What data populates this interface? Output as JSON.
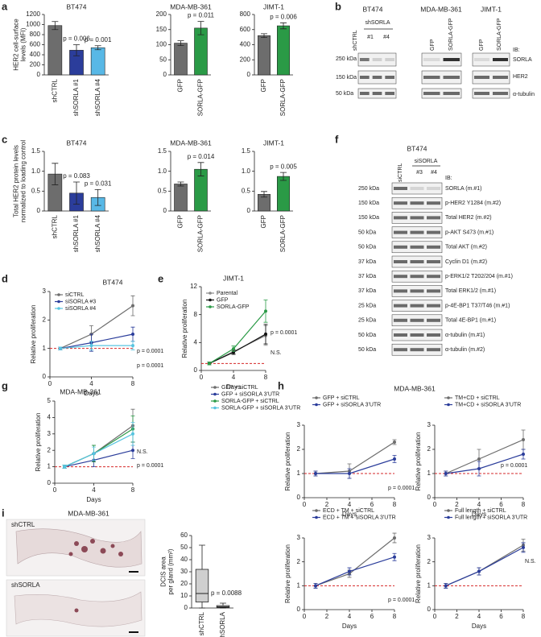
{
  "panels": [
    "a",
    "b",
    "c",
    "d",
    "e",
    "f",
    "g",
    "h",
    "i"
  ],
  "h_title": "MDA-MB-361",
  "i_title": "MDA-MB-361",
  "i_image_labels": [
    "shCTRL",
    "shSORLA"
  ],
  "blot_b": {
    "cell_lines": [
      "BT474",
      "MDA-MB-361",
      "JIMT-1"
    ],
    "lanes": [
      "shCTRL",
      "shSORLA",
      "#1",
      "#4",
      "GFP",
      "SORLA-GFP",
      "GFP",
      "SORLA-GFP"
    ],
    "markers": [
      "250 kDa",
      "150 kDa",
      "50 kDa"
    ],
    "ib": "IB:",
    "antibodies": [
      "SORLA",
      "HER2",
      "α-tubulin"
    ]
  },
  "blot_f": {
    "cell_line": "BT474",
    "lanes": [
      "siCTRL",
      "siSORLA",
      "#3",
      "#4"
    ],
    "ib": "IB:",
    "rows": [
      {
        "marker": "250 kDa",
        "antibody": "SORLA (m.#1)"
      },
      {
        "marker": "150 kDa",
        "antibody": "p-HER2 Y1284 (m.#2)"
      },
      {
        "marker": "150 kDa",
        "antibody": "Total HER2 (m.#2)"
      },
      {
        "marker": "50 kDa",
        "antibody": "p-AKT S473 (m.#1)"
      },
      {
        "marker": "50 kDa",
        "antibody": "Total AKT (m.#2)"
      },
      {
        "marker": "37 kDa",
        "antibody": "Cyclin D1 (m.#2)"
      },
      {
        "marker": "37 kDa",
        "antibody": "p-ERK1/2 T202/204 (m.#1)"
      },
      {
        "marker": "37 kDa",
        "antibody": "Total ERK1/2 (m.#1)"
      },
      {
        "marker": "25 kDa",
        "antibody": "p-4E-BP1 T37/T46 (m.#1)"
      },
      {
        "marker": "25 kDa",
        "antibody": "Total 4E-BP1 (m.#1)"
      },
      {
        "marker": "50 kDa",
        "antibody": "α-tubulin (m.#1)"
      },
      {
        "marker": "50 kDa",
        "antibody": "α-tubulin (m.#2)"
      }
    ]
  },
  "chart_data": [
    {
      "type": "bar",
      "title": "BT474",
      "ylabel": [
        "HER2 cell-surface",
        "levels (MFI)"
      ],
      "categories": [
        "shCTRL",
        "shSORLA #1",
        "shSORLA #4"
      ],
      "values": [
        980,
        490,
        540
      ],
      "errors": [
        80,
        110,
        40
      ],
      "colors": [
        "#6d6d6d",
        "#2b3d9b",
        "#58b8e6"
      ],
      "ylim": [
        0,
        1200
      ],
      "yticks": [
        0,
        200,
        400,
        600,
        800,
        1000,
        1200
      ],
      "annotations": [
        "p = 0.006",
        "p = 0.001"
      ]
    },
    {
      "type": "bar",
      "title": "MDA-MB-361",
      "categories": [
        "GFP",
        "SORLA-GFP"
      ],
      "values": [
        105,
        155
      ],
      "errors": [
        8,
        22
      ],
      "colors": [
        "#6d6d6d",
        "#2a9a46"
      ],
      "ylim": [
        0,
        200
      ],
      "yticks": [
        0,
        50,
        100,
        150,
        200
      ],
      "annotations": [
        "p = 0.011"
      ]
    },
    {
      "type": "bar",
      "title": "JIMT-1",
      "categories": [
        "GFP",
        "SORLA-GFP"
      ],
      "values": [
        520,
        650
      ],
      "errors": [
        25,
        40
      ],
      "colors": [
        "#6d6d6d",
        "#2a9a46"
      ],
      "ylim": [
        0,
        800
      ],
      "yticks": [
        0,
        200,
        400,
        600,
        800
      ],
      "annotations": [
        "p = 0.006"
      ]
    },
    {
      "type": "bar",
      "title": "BT474",
      "ylabel": [
        "Total HER2 protein levels",
        "normalized to loading control"
      ],
      "categories": [
        "shCTRL",
        "shSORLA #1",
        "shSORLA #4"
      ],
      "values": [
        0.93,
        0.45,
        0.34
      ],
      "errors": [
        0.27,
        0.28,
        0.2
      ],
      "colors": [
        "#6d6d6d",
        "#2b3d9b",
        "#58b8e6"
      ],
      "ylim": [
        0,
        1.5
      ],
      "yticks": [
        0,
        0.5,
        {
          "value": 1,
          "label": "1.0"
        },
        1.5
      ],
      "annotations": [
        "p = 0.083",
        "p = 0.031"
      ]
    },
    {
      "type": "bar",
      "title": "MDA-MB-361",
      "categories": [
        "GFP",
        "SORLA-GFP"
      ],
      "values": [
        0.68,
        1.05
      ],
      "errors": [
        0.05,
        0.17
      ],
      "colors": [
        "#6d6d6d",
        "#2a9a46"
      ],
      "ylim": [
        0,
        1.5
      ],
      "yticks": [
        0,
        0.5,
        {
          "value": 1,
          "label": "1.0"
        },
        1.5
      ],
      "annotations": [
        "p = 0.014"
      ]
    },
    {
      "type": "bar",
      "title": "JIMT-1",
      "categories": [
        "GFP",
        "SORLA-GFP"
      ],
      "values": [
        0.42,
        0.87
      ],
      "errors": [
        0.07,
        0.1
      ],
      "colors": [
        "#6d6d6d",
        "#2a9a46"
      ],
      "ylim": [
        0,
        1.5
      ],
      "yticks": [
        0,
        0.5,
        {
          "value": 1,
          "label": "1.0"
        },
        1.5
      ],
      "annotations": [
        "p = 0.005"
      ]
    },
    {
      "type": "line",
      "title": "BT474",
      "ylabel": "Relative proliferation",
      "xlabel": "Days",
      "x": [
        1,
        4,
        8
      ],
      "xlim": [
        0,
        8
      ],
      "xticks": [
        0,
        4,
        8
      ],
      "ylim": [
        0,
        3
      ],
      "yticks": [
        0,
        1,
        2,
        3
      ],
      "reference_line": 1,
      "reference_color": "#d62728",
      "series": [
        {
          "name": "siCTRL",
          "color": "#6d6d6d",
          "values": [
            1,
            1.5,
            2.5
          ],
          "errors": [
            0.05,
            0.3,
            0.35
          ]
        },
        {
          "name": "siSORLA #3",
          "color": "#2b3d9b",
          "values": [
            1,
            1.2,
            1.5
          ],
          "errors": [
            0.05,
            0.3,
            0.25
          ]
        },
        {
          "name": "siSORLA #4",
          "color": "#58c4e0",
          "values": [
            1,
            1.1,
            1.1
          ],
          "errors": [
            0.05,
            0.15,
            0.15
          ]
        }
      ],
      "annotations": [
        "p = 0.0001",
        "p = 0.0001"
      ]
    },
    {
      "type": "line",
      "title": "JIMT-1",
      "ylabel": "Relative proliferation",
      "xlabel": "Days",
      "x": [
        1,
        4,
        8
      ],
      "xlim": [
        0,
        8
      ],
      "xticks": [
        0,
        4,
        8
      ],
      "ylim": [
        0,
        12
      ],
      "yticks": [
        0,
        4,
        8,
        12
      ],
      "reference_line": 1,
      "reference_color": "#d62728",
      "series": [
        {
          "name": "Parental",
          "color": "#8a8a8a",
          "values": [
            1,
            2.7,
            5
          ],
          "errors": [
            0.2,
            0.3,
            1.4
          ]
        },
        {
          "name": "GFP",
          "color": "#111111",
          "values": [
            1,
            2.6,
            5.2
          ],
          "errors": [
            0.2,
            0.3,
            1.4
          ]
        },
        {
          "name": "SORLA-GFP",
          "color": "#2a9a46",
          "values": [
            1,
            3.1,
            8.5
          ],
          "errors": [
            0.2,
            0.4,
            1.6
          ]
        }
      ],
      "annotations": [
        "p = 0.0001",
        "N.S."
      ]
    },
    {
      "type": "line",
      "title": "MDA-MB-361",
      "ylabel": "Relative proliferation",
      "xlabel": "Days",
      "x": [
        1,
        4,
        8
      ],
      "xlim": [
        0,
        8
      ],
      "xticks": [
        0,
        4,
        8
      ],
      "ylim": [
        0,
        5
      ],
      "yticks": [
        0,
        1,
        2,
        3,
        4,
        5
      ],
      "reference_line": 1,
      "reference_color": "#d62728",
      "series": [
        {
          "name": "GFP + siCTRL",
          "color": "#6d6d6d",
          "values": [
            1,
            1.8,
            3.5
          ],
          "errors": [
            0.1,
            0.5,
            1.0
          ]
        },
        {
          "name": "GFP + siSORLA 3'UTR",
          "color": "#2b3d9b",
          "values": [
            1,
            1.4,
            2.0
          ],
          "errors": [
            0.1,
            0.4,
            0.5
          ]
        },
        {
          "name": "SORLA-GFP + siCTRL",
          "color": "#2a9a46",
          "values": [
            1,
            1.8,
            3.3
          ],
          "errors": [
            0.1,
            0.5,
            0.8
          ]
        },
        {
          "name": "SORLA-GFP + siSORLA 3'UTR",
          "color": "#58c4e0",
          "values": [
            1,
            1.8,
            3.0
          ],
          "errors": [
            0.1,
            0.4,
            0.7
          ]
        }
      ],
      "annotations": [
        "N.S.",
        "p = 0.0001"
      ]
    },
    {
      "type": "line",
      "ylabel": "Relative proliferation",
      "xlabel": "Days",
      "x": [
        1,
        4,
        8
      ],
      "xlim": [
        0,
        8
      ],
      "xticks": [
        0,
        2,
        4,
        6,
        8
      ],
      "ylim": [
        0,
        3
      ],
      "yticks": [
        0,
        1,
        2,
        3
      ],
      "reference_line": 1,
      "reference_color": "#d62728",
      "series": [
        {
          "name": "GFP + siCTRL",
          "color": "#6d6d6d",
          "values": [
            1,
            1.1,
            2.3
          ],
          "errors": [
            0.1,
            0.3,
            0.1
          ]
        },
        {
          "name": "GFP + siSORLA 3'UTR",
          "color": "#2b3d9b",
          "values": [
            1,
            1.0,
            1.6
          ],
          "errors": [
            0.1,
            0.2,
            0.15
          ]
        }
      ],
      "annotations": [
        "p = 0.0001"
      ]
    },
    {
      "type": "line",
      "ylabel": "Relative proliferation",
      "xlabel": "Days",
      "x": [
        1,
        4,
        8
      ],
      "xlim": [
        0,
        8
      ],
      "xticks": [
        0,
        2,
        4,
        6,
        8
      ],
      "ylim": [
        0,
        3
      ],
      "yticks": [
        0,
        1,
        2,
        3
      ],
      "reference_line": 1,
      "reference_color": "#d62728",
      "series": [
        {
          "name": "TM+CD + siCTRL",
          "color": "#6d6d6d",
          "values": [
            1,
            1.6,
            2.4
          ],
          "errors": [
            0.1,
            0.4,
            0.4
          ]
        },
        {
          "name": "TM+CD + siSORLA 3'UTR",
          "color": "#2b3d9b",
          "values": [
            1,
            1.2,
            1.8
          ],
          "errors": [
            0.1,
            0.3,
            0.2
          ]
        }
      ],
      "annotations": [
        "p = 0.0001"
      ]
    },
    {
      "type": "line",
      "ylabel": "Relative proliferation",
      "xlabel": "Days",
      "x": [
        1,
        4,
        8
      ],
      "xlim": [
        0,
        8
      ],
      "xticks": [
        0,
        2,
        4,
        6,
        8
      ],
      "ylim": [
        0,
        3
      ],
      "yticks": [
        0,
        1,
        2,
        3
      ],
      "reference_line": 1,
      "reference_color": "#d62728",
      "series": [
        {
          "name": "ECD + TM + siCTRL",
          "color": "#6d6d6d",
          "values": [
            1,
            1.5,
            3.0
          ],
          "errors": [
            0.1,
            0.15,
            0.2
          ]
        },
        {
          "name": "ECD + TM + siSORLA 3'UTR",
          "color": "#2b3d9b",
          "values": [
            1,
            1.6,
            2.2
          ],
          "errors": [
            0.1,
            0.15,
            0.15
          ]
        }
      ],
      "annotations": [
        "p = 0.0001"
      ]
    },
    {
      "type": "line",
      "ylabel": "Relative proliferation",
      "xlabel": "Days",
      "x": [
        1,
        4,
        8
      ],
      "xlim": [
        0,
        8
      ],
      "xticks": [
        0,
        2,
        4,
        6,
        8
      ],
      "ylim": [
        0,
        3
      ],
      "yticks": [
        0,
        1,
        2,
        3
      ],
      "reference_line": 1,
      "reference_color": "#d62728",
      "series": [
        {
          "name": "Full length + siCTRL",
          "color": "#6d6d6d",
          "values": [
            1,
            1.6,
            2.7
          ],
          "errors": [
            0.1,
            0.15,
            0.25
          ]
        },
        {
          "name": "Full length + siSORLA 3'UTR",
          "color": "#2b3d9b",
          "values": [
            1,
            1.6,
            2.6
          ],
          "errors": [
            0.1,
            0.15,
            0.2
          ]
        }
      ],
      "annotations": [
        "N.S."
      ]
    },
    {
      "type": "box",
      "ylabel": [
        "DCIS area",
        "per gland (mm²)"
      ],
      "categories": [
        "shCTRL",
        "shSORLA"
      ],
      "stats": [
        [
          0,
          5,
          12,
          32,
          52
        ],
        [
          0,
          0.5,
          1,
          2,
          4
        ]
      ],
      "colors": [
        "#cfcfcf",
        "#cfcfcf"
      ],
      "ylim": [
        0,
        60
      ],
      "yticks": [
        0,
        10,
        20,
        30,
        40,
        50,
        60
      ],
      "annotations": [
        "p = 0.0088"
      ]
    }
  ]
}
